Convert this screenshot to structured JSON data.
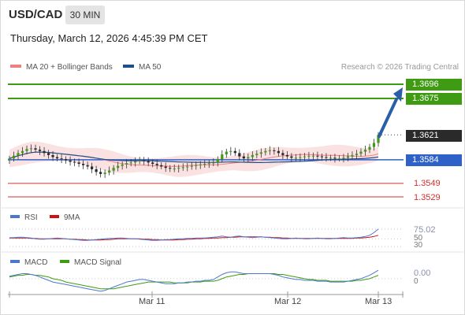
{
  "header": {
    "pair": "USD/CAD",
    "timeframe": "30 MIN",
    "timestamp": "Thursday, March 12, 2026 4:45:39 PM CET",
    "research": "Research © 2026 Trading Central"
  },
  "legend": {
    "ma20": "MA 20 + Bollinger Bands",
    "ma50": "MA 50",
    "ma20_color": "#f08080",
    "ma50_color": "#1f4e8c"
  },
  "levels": {
    "r2": "1.3696",
    "r1": "1.3675",
    "last": "1.3621",
    "pivot": "1.3584",
    "s1": "1.3549",
    "s2": "1.3529",
    "green": "#3f9b12",
    "blue": "#2f62c8",
    "red": "#d03030"
  },
  "rsi": {
    "legend_rsi": "RSI",
    "legend_ma9": "9MA",
    "value": "75.02",
    "level_50": "50",
    "level_30": "30",
    "rsi_color": "#4a78d0",
    "ma9_color": "#d01010"
  },
  "macd": {
    "legend_macd": "MACD",
    "legend_signal": "MACD Signal",
    "value": "0.00",
    "zero": "0",
    "macd_color": "#4a78d0",
    "signal_color": "#3f9b12"
  },
  "xaxis": {
    "labels": [
      "Mar 11",
      "Mar 12",
      "Mar 13"
    ]
  },
  "chart_data": {
    "type": "candlestick",
    "symbol": "USD/CAD",
    "interval": "30 MIN",
    "y_range": [
      1.3515,
      1.371
    ],
    "x_labels": [
      "Mar 11",
      "Mar 12",
      "Mar 13"
    ],
    "horizontal_levels": [
      1.3696,
      1.3675,
      1.3621,
      1.3584,
      1.3549,
      1.3529
    ],
    "close": [
      1.3586,
      1.359,
      1.3594,
      1.3597,
      1.36,
      1.3601,
      1.3599,
      1.3597,
      1.3594,
      1.3591,
      1.3588,
      1.3586,
      1.3585,
      1.3583,
      1.3581,
      1.358,
      1.3578,
      1.3576,
      1.3574,
      1.357,
      1.3566,
      1.3563,
      1.3565,
      1.3568,
      1.3572,
      1.3575,
      1.3577,
      1.3579,
      1.358,
      1.3582,
      1.3583,
      1.3582,
      1.358,
      1.3578,
      1.3576,
      1.3574,
      1.3572,
      1.3571,
      1.3571,
      1.3572,
      1.3573,
      1.3574,
      1.3575,
      1.3576,
      1.3577,
      1.3578,
      1.3579,
      1.358,
      1.3585,
      1.3592,
      1.3596,
      1.3597,
      1.3594,
      1.3589,
      1.3586,
      1.3588,
      1.3591,
      1.3593,
      1.3595,
      1.3597,
      1.3598,
      1.3597,
      1.3594,
      1.3591,
      1.3589,
      1.3587,
      1.3587,
      1.3588,
      1.3589,
      1.359,
      1.359,
      1.3589,
      1.3588,
      1.3587,
      1.3587,
      1.3586,
      1.3586,
      1.3587,
      1.3589,
      1.3591,
      1.3593,
      1.3596,
      1.3599,
      1.3603,
      1.3609,
      1.3621
    ],
    "rsi": [
      53,
      53,
      54,
      54,
      53,
      52,
      50,
      49,
      49,
      50,
      51,
      52,
      51,
      50,
      49,
      48,
      47,
      46,
      46,
      47,
      48,
      49,
      50,
      51,
      51,
      52,
      52,
      51,
      50,
      50,
      49,
      48,
      47,
      46,
      46,
      47,
      48,
      48,
      49,
      50,
      50,
      51,
      51,
      52,
      52,
      52,
      53,
      54,
      55,
      57,
      55,
      54,
      56,
      57,
      55,
      54,
      53,
      54,
      55,
      54,
      53,
      52,
      51,
      50,
      50,
      51,
      52,
      51,
      50,
      50,
      51,
      52,
      51,
      50,
      50,
      51,
      52,
      53,
      52,
      52,
      53,
      54,
      56,
      59,
      66,
      75
    ],
    "rsi_ma9": [
      52,
      52,
      52,
      52,
      52,
      51,
      51,
      50,
      50,
      50,
      50,
      50,
      50,
      50,
      49,
      49,
      48,
      48,
      47,
      47,
      47,
      47,
      48,
      48,
      49,
      50,
      50,
      50,
      50,
      50,
      50,
      49,
      49,
      48,
      48,
      47,
      47,
      47,
      47,
      48,
      48,
      49,
      49,
      50,
      50,
      51,
      51,
      52,
      52,
      53,
      53,
      54,
      54,
      55,
      55,
      55,
      55,
      55,
      55,
      54,
      54,
      53,
      53,
      52,
      52,
      51,
      51,
      51,
      51,
      51,
      51,
      51,
      51,
      51,
      51,
      51,
      51,
      51,
      51,
      51,
      52,
      52,
      53,
      54,
      56,
      59
    ],
    "macd": [
      0.0003,
      0.0004,
      0.0005,
      0.0006,
      0.0006,
      0.0005,
      0.0004,
      0.0002,
      0.0,
      -0.0002,
      -0.0004,
      -0.0005,
      -0.0006,
      -0.0007,
      -0.0008,
      -0.0009,
      -0.001,
      -0.0011,
      -0.0012,
      -0.0013,
      -0.0014,
      -0.0015,
      -0.0014,
      -0.0012,
      -0.001,
      -0.0008,
      -0.0006,
      -0.0004,
      -0.0003,
      -0.0002,
      -0.0001,
      -0.0001,
      -0.0002,
      -0.0003,
      -0.0004,
      -0.0005,
      -0.0006,
      -0.0006,
      -0.0006,
      -0.0005,
      -0.0005,
      -0.0004,
      -0.0004,
      -0.0003,
      -0.0003,
      -0.0002,
      -0.0002,
      -0.0001,
      0.0002,
      0.0005,
      0.0007,
      0.0008,
      0.0008,
      0.0007,
      0.0006,
      0.0006,
      0.0006,
      0.0006,
      0.0006,
      0.0006,
      0.0006,
      0.0005,
      0.0004,
      0.0002,
      0.0001,
      0.0,
      -0.0001,
      -0.0001,
      -0.0002,
      -0.0002,
      -0.0002,
      -0.0003,
      -0.0003,
      -0.0003,
      -0.0004,
      -0.0004,
      -0.0004,
      -0.0004,
      -0.0003,
      -0.0002,
      -0.0001,
      0.0,
      0.0002,
      0.0004,
      0.0007,
      0.001
    ],
    "macd_signal": [
      0.0002,
      0.0003,
      0.0004,
      0.0004,
      0.0005,
      0.0005,
      0.0004,
      0.0004,
      0.0003,
      0.0002,
      0.0,
      -0.0001,
      -0.0002,
      -0.0004,
      -0.0005,
      -0.0006,
      -0.0007,
      -0.0008,
      -0.0009,
      -0.001,
      -0.0011,
      -0.0012,
      -0.0012,
      -0.0012,
      -0.0012,
      -0.0011,
      -0.001,
      -0.0009,
      -0.0008,
      -0.0007,
      -0.0006,
      -0.0005,
      -0.0004,
      -0.0004,
      -0.0004,
      -0.0004,
      -0.0004,
      -0.0004,
      -0.0005,
      -0.0005,
      -0.0005,
      -0.0005,
      -0.0004,
      -0.0004,
      -0.0004,
      -0.0003,
      -0.0003,
      -0.0003,
      -0.0002,
      0.0,
      0.0002,
      0.0003,
      0.0004,
      0.0005,
      0.0005,
      0.0006,
      0.0006,
      0.0006,
      0.0006,
      0.0006,
      0.0006,
      0.0006,
      0.0005,
      0.0005,
      0.0004,
      0.0003,
      0.0002,
      0.0001,
      0.0,
      -0.0001,
      -0.0001,
      -0.0002,
      -0.0002,
      -0.0002,
      -0.0003,
      -0.0003,
      -0.0003,
      -0.0003,
      -0.0003,
      -0.0003,
      -0.0002,
      -0.0002,
      -0.0001,
      0.0,
      0.0002,
      0.0004
    ]
  }
}
